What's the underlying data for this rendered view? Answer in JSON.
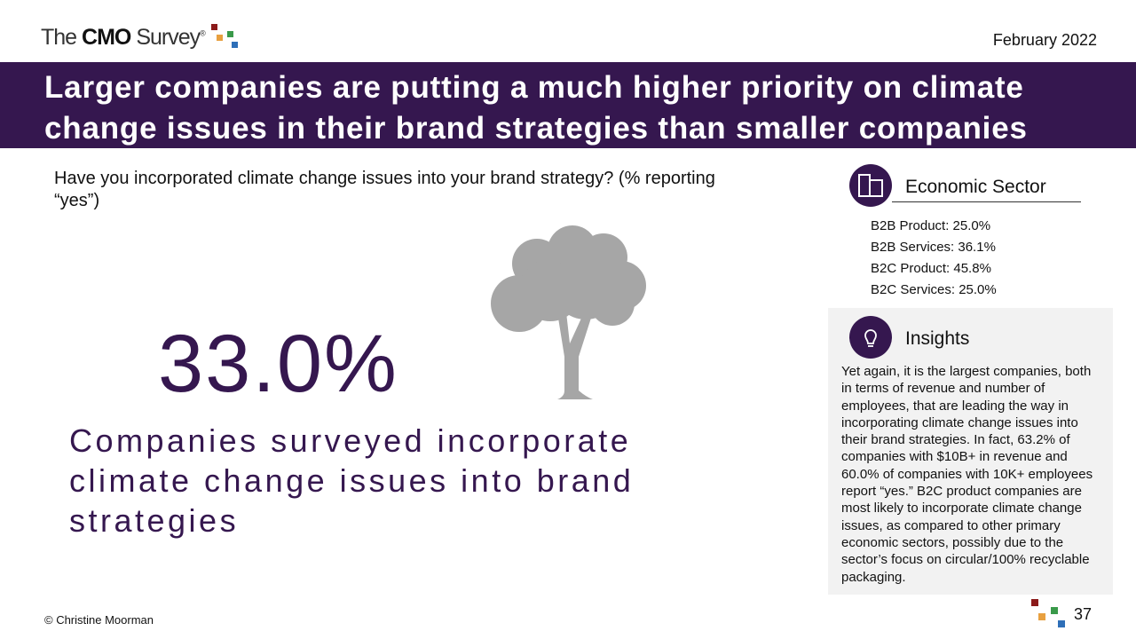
{
  "header": {
    "logo": {
      "the": "The",
      "cmo": "CMO",
      "survey": "Survey",
      "mark": "®"
    },
    "date": "February 2022",
    "title": "Larger companies are putting a much higher priority on climate change issues in their brand strategies than smaller companies"
  },
  "question": "Have you incorporated climate change issues into your brand strategy? (% reporting “yes”)",
  "stat": {
    "value": "33.0%",
    "caption": "Companies surveyed incorporate climate change issues into brand strategies"
  },
  "sidebar": {
    "sector_title": "Economic Sector",
    "sectors": [
      "B2B Product: 25.0%",
      "B2B Services: 36.1%",
      "B2C Product: 45.8%",
      "B2C Services: 25.0%"
    ],
    "insights_title": "Insights",
    "insights_body": "Yet again, it is the largest companies, both in terms of revenue and number of employees, that are leading the way in incorporating climate change issues into their brand strategies. In fact, 63.2% of companies with $10B+ in revenue and 60.0% of companies with 10K+ employees report “yes.” B2C product companies are most likely to incorporate climate change issues, as compared to other primary economic sectors, possibly due to the sector’s focus on circular/100% recyclable packaging."
  },
  "footer": {
    "copyright": "© Christine Moorman",
    "page": "37"
  }
}
